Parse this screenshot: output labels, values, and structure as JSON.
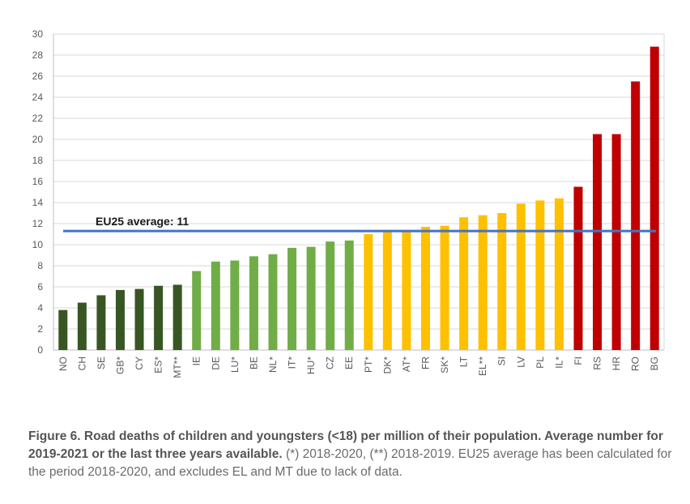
{
  "chart_data": {
    "type": "bar",
    "categories": [
      "NO",
      "CH",
      "SE",
      "GB*",
      "CY",
      "ES*",
      "MT**",
      "IE",
      "DE",
      "LU*",
      "BE",
      "NL*",
      "IT*",
      "HU*",
      "CZ",
      "EE",
      "PT*",
      "DK*",
      "AT*",
      "FR",
      "SK*",
      "LT",
      "EL**",
      "SI",
      "LV",
      "PL",
      "IL*",
      "FI",
      "RS",
      "HR",
      "RO",
      "BG"
    ],
    "values": [
      3.8,
      4.5,
      5.2,
      5.7,
      5.8,
      6.1,
      6.2,
      7.5,
      8.4,
      8.5,
      8.9,
      9.1,
      9.7,
      9.8,
      10.3,
      10.4,
      11.0,
      11.3,
      11.3,
      11.7,
      11.8,
      12.6,
      12.8,
      13.0,
      13.9,
      14.2,
      14.4,
      15.5,
      20.5,
      20.5,
      25.5,
      28.8
    ],
    "groups": [
      "dark",
      "dark",
      "dark",
      "dark",
      "dark",
      "dark",
      "dark",
      "light",
      "light",
      "light",
      "light",
      "light",
      "light",
      "light",
      "light",
      "light",
      "yellow",
      "yellow",
      "yellow",
      "yellow",
      "yellow",
      "yellow",
      "yellow",
      "yellow",
      "yellow",
      "yellow",
      "yellow",
      "red",
      "red",
      "red",
      "red",
      "red"
    ],
    "colors": {
      "dark": "#375623",
      "light": "#70ad47",
      "yellow": "#ffc000",
      "red": "#c00000",
      "average_line": "#4472c4",
      "grid": "#d9d9d9",
      "axis": "#bfbfbf"
    },
    "ylim": [
      0,
      30
    ],
    "yticks": [
      0,
      2,
      4,
      6,
      8,
      10,
      12,
      14,
      16,
      18,
      20,
      22,
      24,
      26,
      28,
      30
    ],
    "average": {
      "label": "EU25 average: 11",
      "value": 11.3
    },
    "title": "",
    "xlabel": "",
    "ylabel": ""
  },
  "caption": {
    "bold": "Figure 6. Road deaths of children and youngsters (<18) per million of their population. Average number for 2019-2021 or the last three years available.",
    "normal": " (*) 2018-2020, (**) 2018-2019. EU25 average has been calculated for the period 2018-2020, and excludes EL and MT due to lack of data."
  }
}
